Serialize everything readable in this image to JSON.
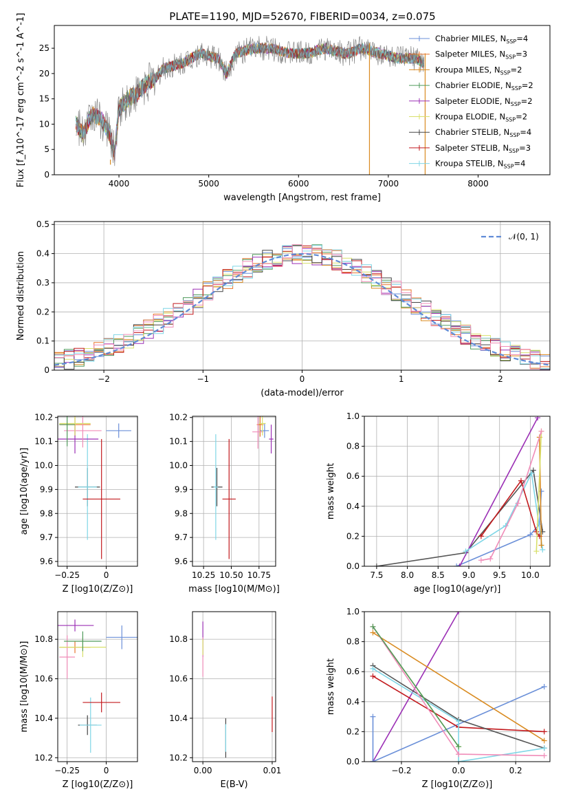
{
  "figure_title": "PLATE=1190, MJD=52670, FIBERID=0034, z=0.075",
  "legend_spectrum": [
    {
      "label": "Chabrier MILES, N",
      "sub": "SSP",
      "tail": "=4",
      "color": "#6a8fd8"
    },
    {
      "label": "Salpeter MILES, N",
      "sub": "SSP",
      "tail": "=3",
      "color": "#e8742a"
    },
    {
      "label": "Kroupa MILES, N",
      "sub": "SSP",
      "tail": "=2",
      "color": "#d98a1f"
    },
    {
      "label": "Chabrier ELODIE, N",
      "sub": "SSP",
      "tail": "=2",
      "color": "#4f9a5b"
    },
    {
      "label": "Salpeter ELODIE, N",
      "sub": "SSP",
      "tail": "=2",
      "color": "#9b2fb5"
    },
    {
      "label": "Kroupa ELODIE, N",
      "sub": "SSP",
      "tail": "=2",
      "color": "#d8e06a"
    },
    {
      "label": "Chabrier STELIB, N",
      "sub": "SSP",
      "tail": "=4",
      "color": "#444444"
    },
    {
      "label": "Salpeter STELIB, N",
      "sub": "SSP",
      "tail": "=3",
      "color": "#c2181c"
    },
    {
      "label": "Kroupa STELIB, N",
      "sub": "SSP",
      "tail": "=4",
      "color": "#7fd6e6"
    }
  ],
  "chart_data": [
    {
      "id": "spectrum",
      "type": "line",
      "title": "PLATE=1190, MJD=52670, FIBERID=0034, z=0.075",
      "xlabel": "wavelength [Angstrom, rest frame]",
      "ylabel": "Flux [f_λ10^-17 erg cm^-2 s^-1 A^-1]",
      "xlim": [
        3280,
        8800
      ],
      "ylim": [
        0,
        29.5
      ],
      "xticks": [
        4000,
        5000,
        6000,
        7000,
        8000
      ],
      "yticks": [
        0,
        5,
        10,
        15,
        20,
        25
      ],
      "series": [
        {
          "name": "data",
          "color": "#777777",
          "x": [
            3520,
            3600,
            3700,
            3800,
            3900,
            3950,
            4000,
            4100,
            4200,
            4300,
            4400,
            4500,
            4700,
            4900,
            5100,
            5200,
            5300,
            5500,
            5700,
            5900,
            6100,
            6300,
            6500,
            6563,
            6700,
            6900,
            7100,
            7300,
            7400
          ],
          "y": [
            10,
            8,
            12,
            11,
            8,
            4,
            13,
            15,
            16,
            18,
            19,
            21,
            22,
            24,
            23,
            20,
            24,
            25,
            25,
            24,
            24,
            25,
            24,
            24,
            25,
            24,
            23,
            23,
            22
          ]
        }
      ]
    },
    {
      "id": "residuals",
      "type": "line",
      "xlabel": "(data-model)/error",
      "ylabel": "Normed distribution",
      "xlim": [
        -2.5,
        2.5
      ],
      "ylim": [
        0,
        0.51
      ],
      "xticks": [
        -2,
        -1,
        0,
        1,
        2
      ],
      "yticks": [
        0.0,
        0.1,
        0.2,
        0.3,
        0.4,
        0.5
      ],
      "grid": true,
      "legend_label": "𝒩(0, 1)",
      "legend_loc": "top-right",
      "gaussian": {
        "mu": 0,
        "sigma": 1,
        "color": "#5f8ad6"
      },
      "hist_colors": [
        "#6a8fd8",
        "#e8742a",
        "#d98a1f",
        "#4f9a5b",
        "#9b2fb5",
        "#d8e06a",
        "#444444",
        "#c2181c",
        "#7fd6e6",
        "#f08cb8"
      ]
    },
    {
      "id": "age-vs-z",
      "type": "scatter",
      "xlabel": "Z [log10(Z/Z⊙)]",
      "ylabel": "age [log10(age/yr)]",
      "xlim": [
        -0.31,
        0.2
      ],
      "ylim": [
        9.58,
        10.205
      ],
      "xticks": [
        -0.25,
        0.0
      ],
      "ytick_labels": [
        "9.6",
        "9.7",
        "9.8",
        "9.9",
        "10.0",
        "10.1",
        "10.2"
      ],
      "grid": true,
      "points": [
        {
          "x": -0.12,
          "y": 9.91,
          "xerr": 0.08,
          "yerr": 0.08,
          "color": "#444444"
        },
        {
          "x": -0.12,
          "y": 9.91,
          "xerr": 0.06,
          "yerr": 0.22,
          "color": "#7fd6e6"
        },
        {
          "x": -0.03,
          "y": 9.86,
          "xerr": 0.12,
          "yerr": 0.25,
          "color": "#c2181c"
        },
        {
          "x": 0.08,
          "y": 10.145,
          "xerr": 0.08,
          "yerr": 0.03,
          "color": "#6a8fd8"
        },
        {
          "x": -0.2,
          "y": 10.17,
          "xerr": 0.1,
          "yerr": 0.05,
          "color": "#e8742a"
        },
        {
          "x": -0.2,
          "y": 10.11,
          "xerr": 0.15,
          "yerr": 0.06,
          "color": "#9b2fb5"
        },
        {
          "x": -0.15,
          "y": 10.145,
          "xerr": 0.12,
          "yerr": 0.07,
          "color": "#f08cb8"
        },
        {
          "x": -0.2,
          "y": 10.175,
          "xerr": 0.1,
          "yerr": 0.05,
          "color": "#d8e06a"
        },
        {
          "x": -0.25,
          "y": 10.17,
          "xerr": 0.05,
          "yerr": 0.09,
          "color": "#4f9a5b"
        }
      ]
    },
    {
      "id": "age-vs-mass",
      "type": "scatter",
      "xlabel": "mass [log10(M/M⊙)]",
      "ylabel": "",
      "xlim": [
        10.15,
        10.9
      ],
      "ylim": [
        9.58,
        10.205
      ],
      "xtick_labels": [
        "10.25",
        "10.50",
        "10.75"
      ],
      "ytick_labels": [
        "9.6",
        "9.7",
        "9.8",
        "9.9",
        "10.0",
        "10.1",
        "10.2"
      ],
      "grid": true,
      "points": [
        {
          "x": 10.37,
          "y": 9.91,
          "xerr": 0.05,
          "yerr": 0.08,
          "color": "#444444"
        },
        {
          "x": 10.36,
          "y": 9.91,
          "xerr": 0.02,
          "yerr": 0.22,
          "color": "#7fd6e6"
        },
        {
          "x": 10.48,
          "y": 9.86,
          "xerr": 0.06,
          "yerr": 0.25,
          "color": "#c2181c"
        },
        {
          "x": 10.8,
          "y": 10.145,
          "xerr": 0.04,
          "yerr": 0.03,
          "color": "#6a8fd8"
        },
        {
          "x": 10.76,
          "y": 10.17,
          "xerr": 0.03,
          "yerr": 0.05,
          "color": "#e8742a"
        },
        {
          "x": 10.86,
          "y": 10.11,
          "xerr": 0.02,
          "yerr": 0.06,
          "color": "#9b2fb5"
        },
        {
          "x": 10.74,
          "y": 10.14,
          "xerr": 0.05,
          "yerr": 0.07,
          "color": "#f08cb8"
        },
        {
          "x": 10.78,
          "y": 10.175,
          "xerr": 0.03,
          "yerr": 0.05,
          "color": "#d8e06a"
        }
      ]
    },
    {
      "id": "weight-vs-age",
      "type": "line",
      "xlabel": "age [log10(age/yr)]",
      "ylabel": "mass weight",
      "xlim": [
        7.3,
        10.32
      ],
      "ylim": [
        0,
        1.0
      ],
      "xtick_labels": [
        "7.5",
        "8.0",
        "8.5",
        "9.0",
        "9.5",
        "10.0"
      ],
      "ytick_labels": [
        "0.0",
        "0.2",
        "0.4",
        "0.6",
        "0.8",
        "1.0"
      ],
      "grid": true,
      "series": [
        {
          "name": "Chabrier STELIB",
          "color": "#555555",
          "x": [
            7.5,
            8.95,
            10.05,
            10.2
          ],
          "y": [
            0.0,
            0.09,
            0.64,
            0.23
          ]
        },
        {
          "name": "Chabrier MILES",
          "color": "#6a8fd8",
          "x": [
            8.8,
            10.0,
            10.15,
            10.18
          ],
          "y": [
            0.0,
            0.21,
            0.28,
            0.5
          ]
        },
        {
          "name": "Salpeter ELODIE",
          "color": "#9b2fb5",
          "x": [
            8.85,
            10.12
          ],
          "y": [
            0.0,
            0.99
          ]
        },
        {
          "name": "Kroupa STELIB",
          "color": "#7fd6e6",
          "x": [
            8.95,
            9.6,
            10.02,
            10.2
          ],
          "y": [
            0.1,
            0.27,
            0.62,
            0.11
          ]
        },
        {
          "name": "Salpeter STELIB",
          "color": "#c2181c",
          "x": [
            9.2,
            9.85,
            10.1,
            10.15
          ],
          "y": [
            0.2,
            0.57,
            0.23,
            0.2
          ]
        },
        {
          "name": "Kroupa MILES",
          "color": "#d98a1f",
          "x": [
            10.15,
            10.18
          ],
          "y": [
            0.86,
            0.14
          ]
        },
        {
          "name": "Kroupa ELODIE",
          "color": "#d8e06a",
          "x": [
            10.1,
            10.18
          ],
          "y": [
            0.1,
            0.9
          ]
        },
        {
          "name": "pink",
          "color": "#f08cb8",
          "x": [
            9.2,
            9.35,
            9.8,
            10.18
          ],
          "y": [
            0.04,
            0.05,
            0.42,
            0.9
          ]
        }
      ]
    },
    {
      "id": "mass-vs-z",
      "type": "scatter",
      "xlabel": "Z [log10(Z/Z⊙)]",
      "ylabel": "mass [log10(M/M⊙)]",
      "xlim": [
        -0.31,
        0.2
      ],
      "ylim": [
        10.18,
        10.94
      ],
      "xticks": [
        -0.25,
        0.0
      ],
      "ytick_labels": [
        "10.2",
        "10.4",
        "10.6",
        "10.8"
      ],
      "grid": true,
      "points": [
        {
          "x": -0.12,
          "y": 10.365,
          "xerr": 0.06,
          "yerr": 0.05,
          "color": "#444444"
        },
        {
          "x": -0.1,
          "y": 10.365,
          "xerr": 0.07,
          "yerr": 0.14,
          "color": "#7fd6e6"
        },
        {
          "x": -0.03,
          "y": 10.48,
          "xerr": 0.12,
          "yerr": 0.05,
          "color": "#c2181c"
        },
        {
          "x": 0.1,
          "y": 10.81,
          "xerr": 0.1,
          "yerr": 0.06,
          "color": "#6a8fd8"
        },
        {
          "x": -0.2,
          "y": 10.76,
          "xerr": 0.1,
          "yerr": 0.03,
          "color": "#e8742a"
        },
        {
          "x": -0.2,
          "y": 10.87,
          "xerr": 0.12,
          "yerr": 0.03,
          "color": "#9b2fb5"
        },
        {
          "x": -0.25,
          "y": 10.71,
          "xerr": 0.05,
          "yerr": 0.11,
          "color": "#f08cb8"
        },
        {
          "x": -0.15,
          "y": 10.76,
          "xerr": 0.15,
          "yerr": 0.05,
          "color": "#d8e06a"
        },
        {
          "x": -0.15,
          "y": 10.79,
          "xerr": 0.12,
          "yerr": 0.05,
          "color": "#4f9a5b"
        }
      ]
    },
    {
      "id": "mass-vs-ebv",
      "type": "scatter",
      "xlabel": "E(B-V)",
      "ylabel": "",
      "xlim": [
        -0.0015,
        0.0105
      ],
      "ylim": [
        10.18,
        10.94
      ],
      "xtick_labels": [
        "0.00",
        "0.01"
      ],
      "ytick_labels": [
        "10.2",
        "10.4",
        "10.6",
        "10.8"
      ],
      "grid": true,
      "points": [
        {
          "x": 0.0,
          "y": 10.8,
          "yerr": 0.09,
          "color": "#9b2fb5"
        },
        {
          "x": 0.0,
          "y": 10.71,
          "yerr": 0.1,
          "color": "#f08cb8"
        },
        {
          "x": 0.0,
          "y": 10.76,
          "yerr": 0.04,
          "color": "#d8e06a"
        },
        {
          "x": 0.0033,
          "y": 10.3,
          "yerr": 0.1,
          "color": "#444444"
        },
        {
          "x": 0.0033,
          "y": 10.3,
          "yerr": 0.07,
          "color": "#7fd6e6"
        },
        {
          "x": 0.01,
          "y": 10.42,
          "yerr": 0.09,
          "color": "#c2181c"
        }
      ]
    },
    {
      "id": "weight-vs-z",
      "type": "line",
      "xlabel": "Z [log10(Z/Z⊙)]",
      "ylabel": "mass weight",
      "xlim": [
        -0.33,
        0.32
      ],
      "ylim": [
        0,
        1.0
      ],
      "xtick_labels": [
        "−0.2",
        "0.0",
        "0.2"
      ],
      "ytick_labels": [
        "0.0",
        "0.2",
        "0.4",
        "0.6",
        "0.8",
        "1.0"
      ],
      "grid": true,
      "series": [
        {
          "name": "Salpeter ELODIE",
          "color": "#9b2fb5",
          "x": [
            -0.3,
            0.0
          ],
          "y": [
            0.0,
            1.0
          ]
        },
        {
          "name": "Chabrier MILES",
          "color": "#6a8fd8",
          "x": [
            -0.3,
            0.3
          ],
          "y": [
            0.0,
            0.5
          ]
        },
        {
          "name": "Chabrier MILES b",
          "color": "#6a8fd8",
          "x": [
            -0.3,
            -0.3
          ],
          "y": [
            0.0,
            0.3
          ]
        },
        {
          "name": "Kroupa MILES",
          "color": "#d98a1f",
          "x": [
            -0.3,
            0.3
          ],
          "y": [
            0.86,
            0.14
          ]
        },
        {
          "name": "Salpeter STELIB",
          "color": "#c2181c",
          "x": [
            -0.3,
            0.0,
            0.3
          ],
          "y": [
            0.57,
            0.23,
            0.2
          ]
        },
        {
          "name": "Chabrier STELIB",
          "color": "#555555",
          "x": [
            -0.3,
            0.0,
            0.3
          ],
          "y": [
            0.64,
            0.28,
            0.09
          ]
        },
        {
          "name": "Kroupa STELIB",
          "color": "#7fd6e6",
          "x": [
            -0.3,
            0.0,
            0.0,
            0.3
          ],
          "y": [
            0.62,
            0.27,
            0.0,
            0.09
          ]
        },
        {
          "name": "Kroupa ELODIE",
          "color": "#d8e06a",
          "x": [
            -0.3,
            0.0,
            0.0
          ],
          "y": [
            0.9,
            0.1,
            0.1
          ]
        },
        {
          "name": "pink",
          "color": "#f08cb8",
          "x": [
            -0.3,
            0.0,
            0.0,
            0.3
          ],
          "y": [
            0.9,
            0.05,
            0.05,
            0.04
          ]
        },
        {
          "name": "green",
          "color": "#4f9a5b",
          "x": [
            -0.3,
            0.0
          ],
          "y": [
            0.9,
            0.1
          ]
        }
      ]
    }
  ]
}
